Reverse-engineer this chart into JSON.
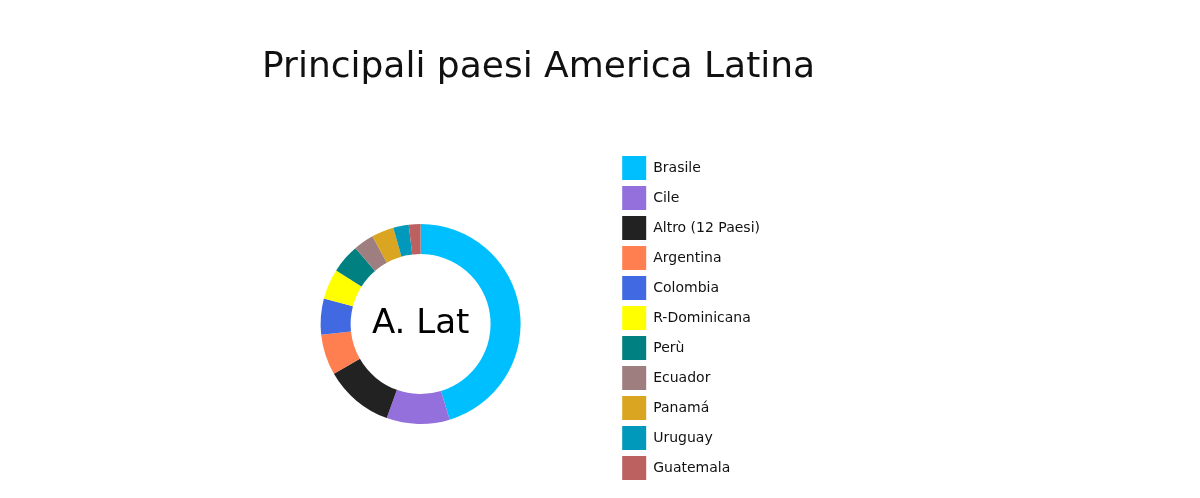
{
  "chart_data": {
    "type": "donut",
    "title": "Principali paesi America Latina",
    "categories": [
      "Brasile",
      "Cile",
      "Altro (12 Paesi)",
      "Argentina",
      "Colombia",
      "R-Dominicana",
      "Perù",
      "Ecuador",
      "Panamá",
      "Uruguay",
      "Guatemala"
    ],
    "values": [
      45.3,
      10.2,
      11.2,
      6.6,
      5.8,
      4.9,
      4.7,
      3.3,
      3.6,
      2.5,
      1.9
    ],
    "colors": [
      "#00bfff",
      "#9370db",
      "#222222",
      "#ff7f50",
      "#4169e1",
      "#ffff00",
      "#008080",
      "#9e7e7e",
      "#daa520",
      "#0099bb",
      "#bc6060"
    ],
    "annotations": [
      "A. Lat"
    ],
    "legend": "right"
  }
}
